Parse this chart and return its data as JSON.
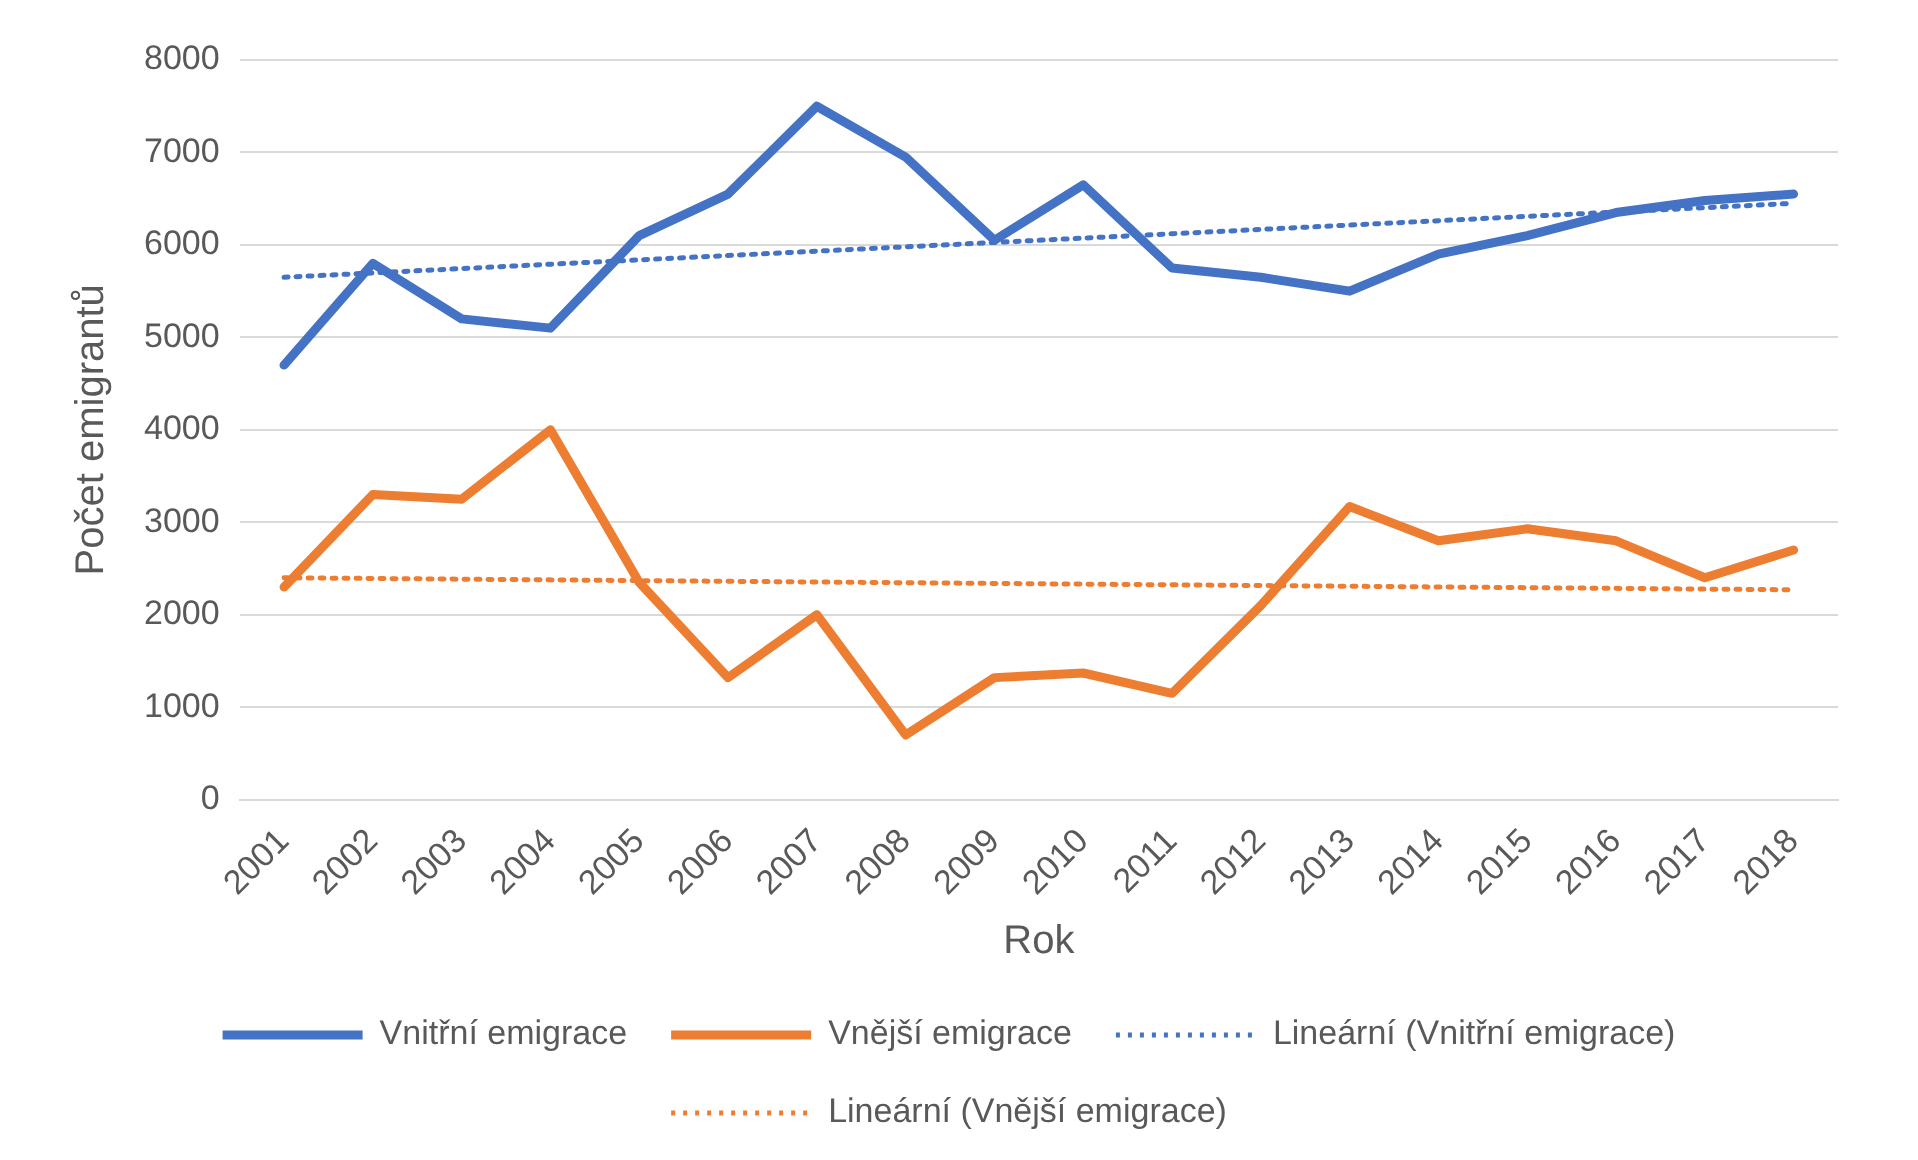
{
  "chart_data": {
    "type": "line",
    "xlabel": "Rok",
    "ylabel": "Počet emigrantů",
    "categories": [
      "2001",
      "2002",
      "2003",
      "2004",
      "2005",
      "2006",
      "2007",
      "2008",
      "2009",
      "2010",
      "2011",
      "2012",
      "2013",
      "2014",
      "2015",
      "2016",
      "2017",
      "2018"
    ],
    "series": [
      {
        "name": "Vnitřní emigrace",
        "color": "#4472c4",
        "values": [
          4700,
          5800,
          5200,
          5100,
          6100,
          6550,
          7500,
          6950,
          6050,
          6650,
          5750,
          5650,
          5500,
          5900,
          6100,
          6350,
          6480,
          6550
        ]
      },
      {
        "name": "Vnější emigrace",
        "color": "#ed7d31",
        "values": [
          2300,
          3300,
          3250,
          4000,
          2350,
          1320,
          2000,
          700,
          1320,
          1370,
          1150,
          2100,
          3170,
          2800,
          2930,
          2800,
          2400,
          2700
        ]
      },
      {
        "name": "Lineární (Vnitřní emigrace)",
        "color": "#4472c4",
        "line_style": "dotted",
        "values": [
          5650,
          null,
          null,
          null,
          null,
          null,
          null,
          null,
          null,
          null,
          null,
          null,
          null,
          null,
          null,
          null,
          null,
          6450
        ]
      },
      {
        "name": "Lineární (Vnější emigrace)",
        "color": "#ed7d31",
        "line_style": "dotted",
        "values": [
          2400,
          null,
          null,
          null,
          null,
          null,
          null,
          null,
          null,
          null,
          null,
          null,
          null,
          null,
          null,
          null,
          null,
          2270
        ]
      }
    ],
    "ylim": [
      0,
      8000
    ],
    "yticks": [
      0,
      1000,
      2000,
      3000,
      4000,
      5000,
      6000,
      7000,
      8000
    ],
    "grid": "y",
    "legend": "bottom",
    "marker": "none",
    "line_style": "solid"
  }
}
